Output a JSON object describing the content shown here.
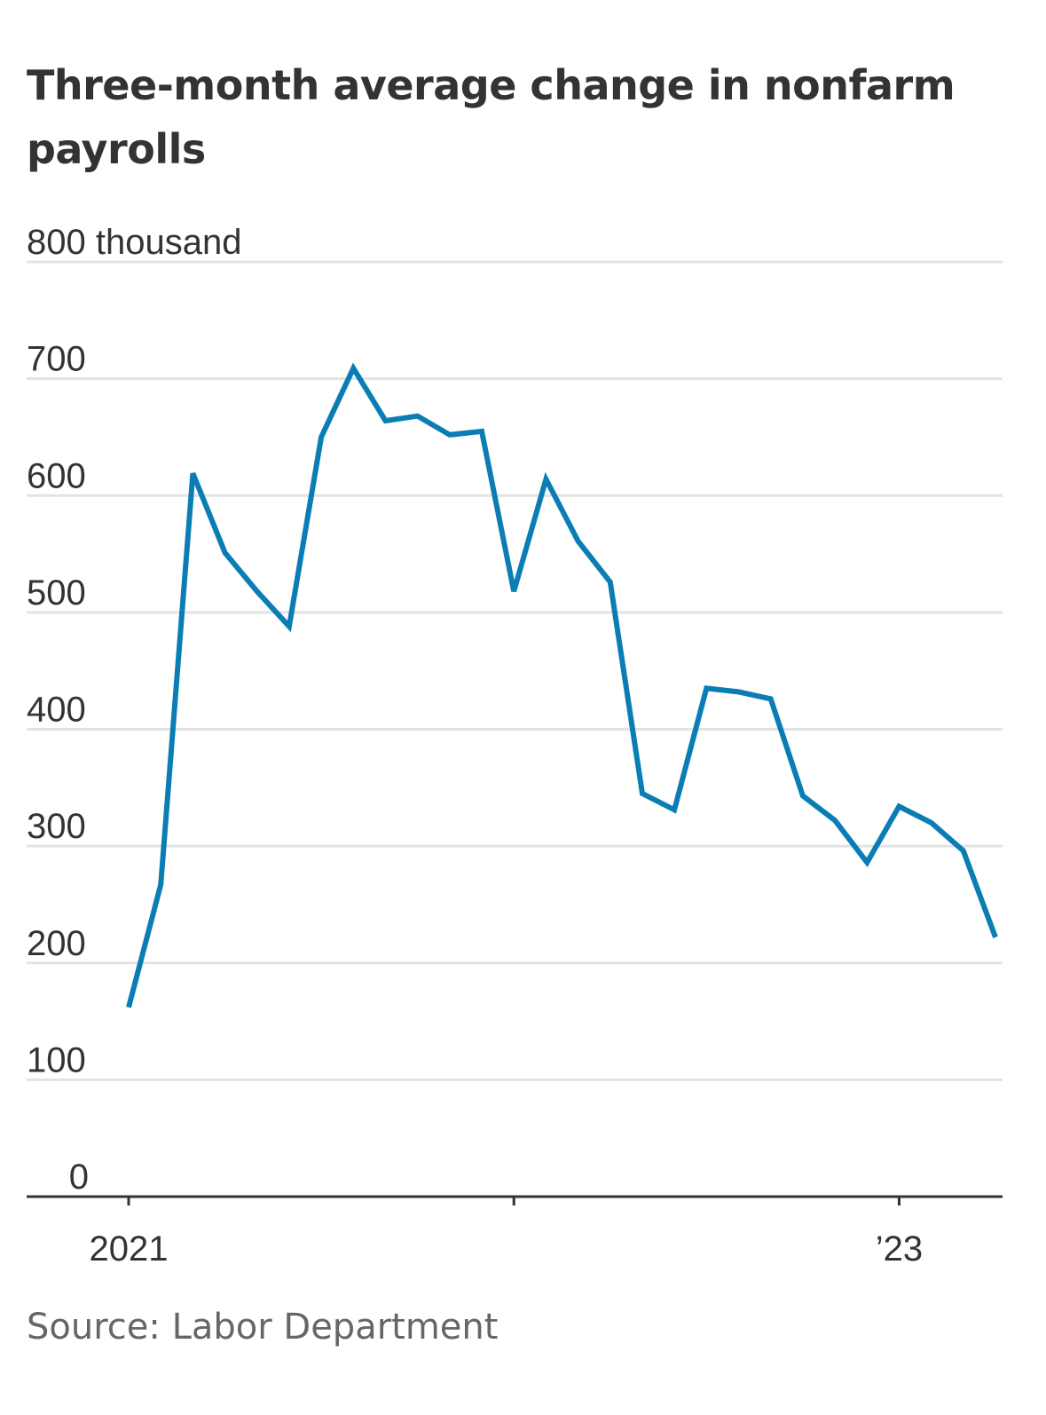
{
  "title": "Three-month average change in nonfarm payrolls",
  "source": "Source: Labor Department",
  "colors": {
    "line": "#0a7eb4",
    "grid": "#e3e3e3",
    "axis": "#333333",
    "text": "#333333",
    "source_text": "#666666"
  },
  "chart_data": {
    "type": "line",
    "title": "Three-month average change in nonfarm payrolls",
    "unit_label": "thousand",
    "xlabel": "",
    "ylabel": "",
    "ylim": [
      0,
      800
    ],
    "yticks": [
      {
        "value": 800,
        "label": "800 thousand"
      },
      {
        "value": 700,
        "label": "700"
      },
      {
        "value": 600,
        "label": "600"
      },
      {
        "value": 500,
        "label": "500"
      },
      {
        "value": 400,
        "label": "400"
      },
      {
        "value": 300,
        "label": "300"
      },
      {
        "value": 200,
        "label": "200"
      },
      {
        "value": 100,
        "label": "100"
      },
      {
        "value": 0,
        "label": "0"
      }
    ],
    "xlim": [
      "2021-01",
      "2023-04"
    ],
    "xticks": [
      {
        "value": "2021-01",
        "label": "2021"
      },
      {
        "value": "2022-01",
        "label": ""
      },
      {
        "value": "2023-01",
        "label": "’23"
      }
    ],
    "grid": true,
    "legend": "none",
    "series": [
      {
        "x": [
          "2021-01",
          "2021-02",
          "2021-03",
          "2021-04",
          "2021-05",
          "2021-06",
          "2021-07",
          "2021-08",
          "2021-09",
          "2021-10",
          "2021-11",
          "2021-12",
          "2022-01",
          "2022-02",
          "2022-03",
          "2022-04",
          "2022-05",
          "2022-06",
          "2022-07",
          "2022-08",
          "2022-09",
          "2022-10",
          "2022-11",
          "2022-12",
          "2023-01",
          "2023-02",
          "2023-03",
          "2023-04"
        ],
        "values": [
          162,
          267,
          619,
          551,
          518,
          488,
          650,
          709,
          664,
          668,
          652,
          655,
          518,
          614,
          561,
          526,
          345,
          331,
          435,
          432,
          426,
          343,
          322,
          286,
          334,
          320,
          296,
          222
        ]
      }
    ]
  }
}
